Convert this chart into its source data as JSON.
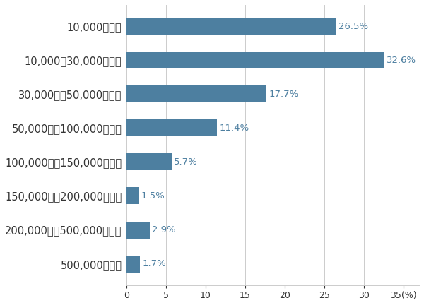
{
  "categories": [
    "10,000円未満",
    "10,000〜30,000円未満",
    "30,000円〜50,000円未満",
    "50,000円〜100,000円未満",
    "100,000円〜150,000円未満",
    "150,000円〜200,000円未満",
    "200,000円〜500,000円未満",
    "500,000円以上"
  ],
  "values": [
    26.5,
    32.6,
    17.7,
    11.4,
    5.7,
    1.5,
    2.9,
    1.7
  ],
  "labels": [
    "26.5%",
    "32.6%",
    "17.7%",
    "11.4%",
    "5.7%",
    "1.5%",
    "2.9%",
    "1.7%"
  ],
  "bar_color": "#4d7fa0",
  "label_color": "#4d7fa0",
  "background_color": "#ffffff",
  "xlim_max": 37,
  "xticks": [
    0,
    5,
    10,
    15,
    20,
    25,
    30,
    35
  ],
  "xtick_labels": [
    "0",
    "5",
    "10",
    "15",
    "20",
    "25",
    "30",
    "35(%)"
  ],
  "grid_color": "#cccccc",
  "tick_color": "#333333",
  "cat_fontsize": 10.5,
  "value_fontsize": 9.5,
  "xtick_fontsize": 9,
  "bar_height": 0.5
}
